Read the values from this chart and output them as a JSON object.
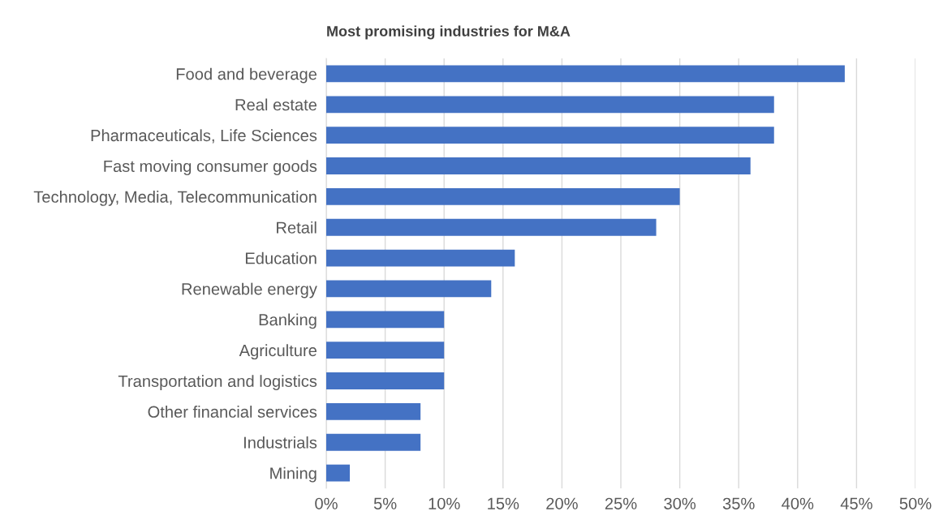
{
  "chart_data": {
    "type": "bar",
    "orientation": "horizontal",
    "title": "Most promising industries for M&A",
    "categories": [
      "Food and beverage",
      "Real estate",
      "Pharmaceuticals, Life Sciences",
      "Fast moving consumer goods",
      "Technology, Media, Telecommunication",
      "Retail",
      "Education",
      "Renewable energy",
      "Banking",
      "Agriculture",
      "Transportation and logistics",
      "Other financial services",
      "Industrials",
      "Mining"
    ],
    "values": [
      44,
      38,
      38,
      36,
      30,
      28,
      16,
      14,
      10,
      10,
      10,
      8,
      8,
      2
    ],
    "color": "#4472c4",
    "xlim": [
      0,
      50
    ],
    "xticks": [
      {
        "value": 0,
        "label": "0%"
      },
      {
        "value": 5,
        "label": "5%"
      },
      {
        "value": 10,
        "label": "10%"
      },
      {
        "value": 15,
        "label": "15%"
      },
      {
        "value": 20,
        "label": "20%"
      },
      {
        "value": 25,
        "label": "25%"
      },
      {
        "value": 30,
        "label": "30%"
      },
      {
        "value": 35,
        "label": "35%"
      },
      {
        "value": 40,
        "label": "40%"
      },
      {
        "value": 45,
        "label": "45%"
      },
      {
        "value": 50,
        "label": "50%"
      }
    ],
    "grid": "x",
    "legend": false
  }
}
